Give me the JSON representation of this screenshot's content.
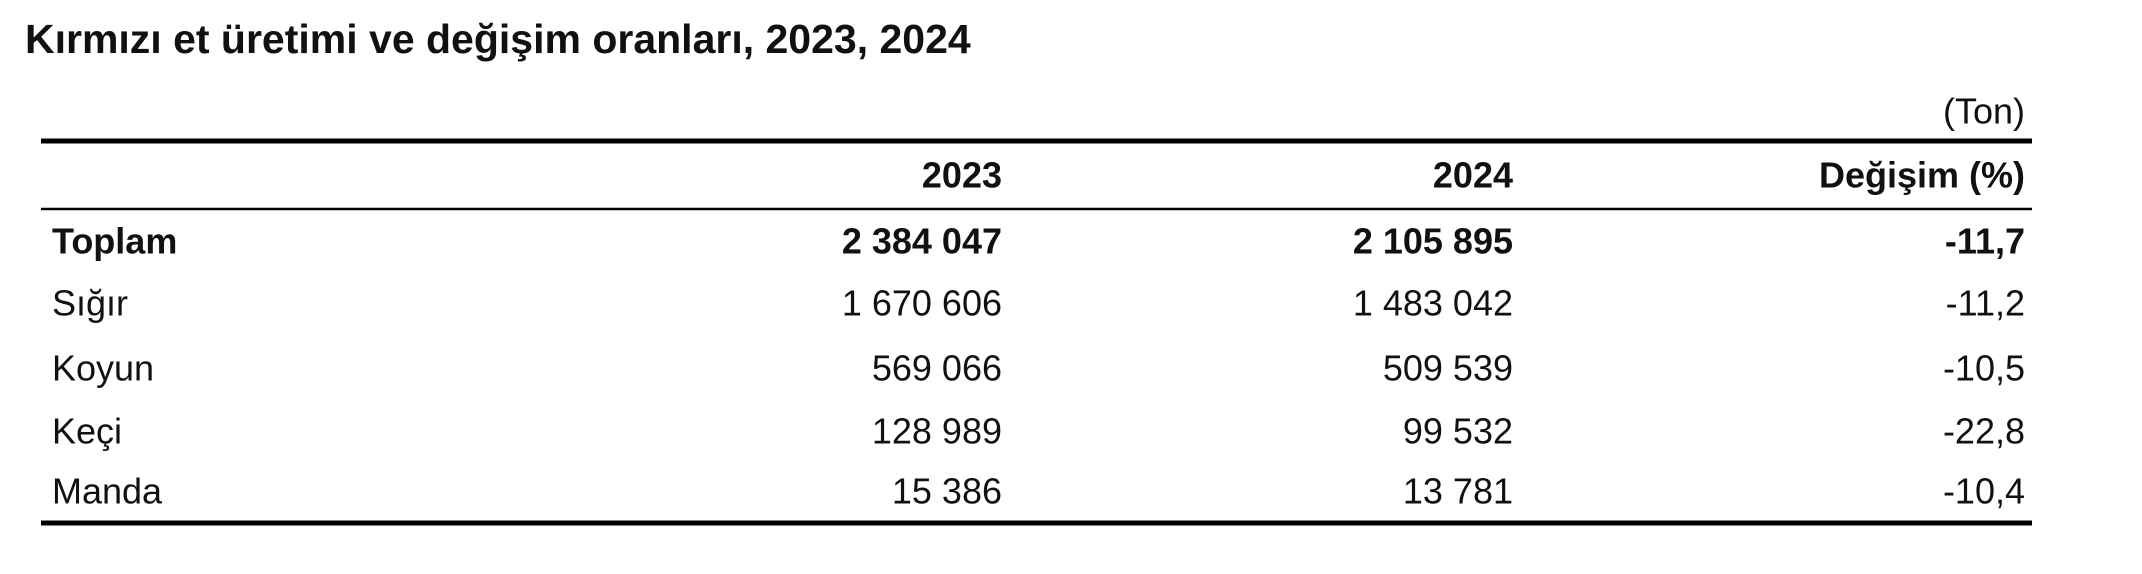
{
  "header": {
    "title": "Kırmızı et üretimi ve değişim oranları, 2023, 2024"
  },
  "table": {
    "unit": "(Ton)",
    "columns": [
      "2023",
      "2024",
      "Değişim (%)"
    ],
    "rows": [
      {
        "label": "Toplam",
        "cells": [
          "2 384 047",
          "2 105 895",
          "-11,7"
        ]
      },
      {
        "label": "Sığır",
        "cells": [
          "1 670 606",
          "1 483 042",
          "-11,2"
        ]
      },
      {
        "label": "Koyun",
        "cells": [
          "569 066",
          "509 539",
          "-10,5"
        ]
      },
      {
        "label": "Keçi",
        "cells": [
          "128 989",
          "99 532",
          "-22,8"
        ]
      },
      {
        "label": "Manda",
        "cells": [
          "15 386",
          "13 781",
          "-10,4"
        ]
      }
    ]
  }
}
